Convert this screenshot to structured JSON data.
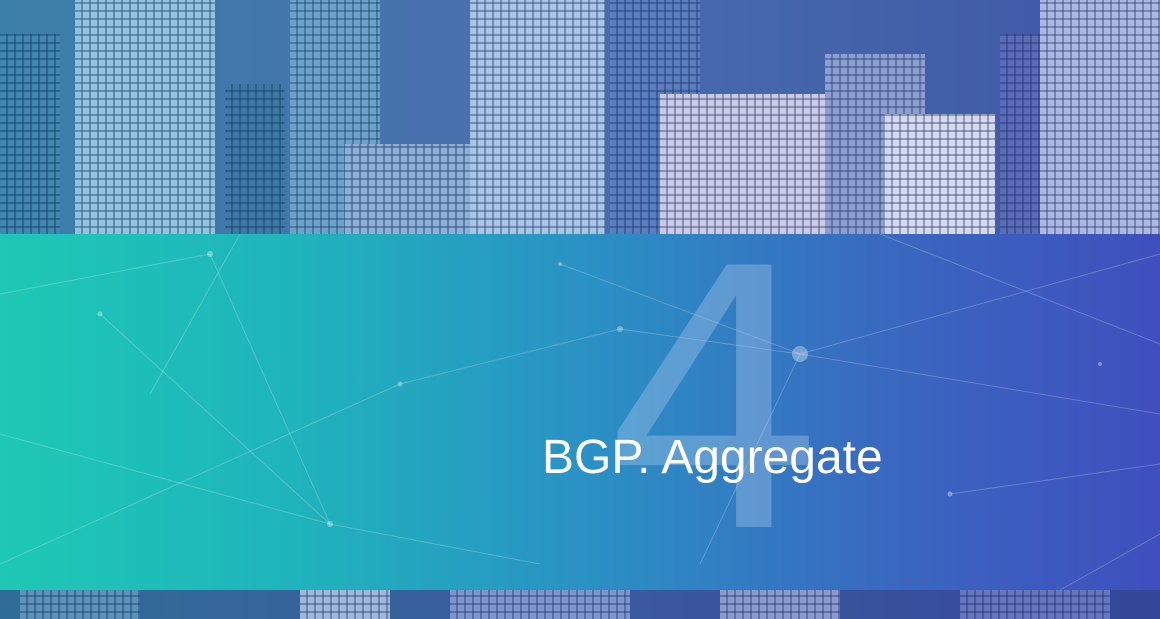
{
  "slide": {
    "number": "4",
    "title": "BGP. Aggregate"
  },
  "colors": {
    "band_left": "#1ec8b4",
    "band_right": "#3f4fbe",
    "number_tint": "#aac8eb",
    "title_text": "#ffffff"
  }
}
